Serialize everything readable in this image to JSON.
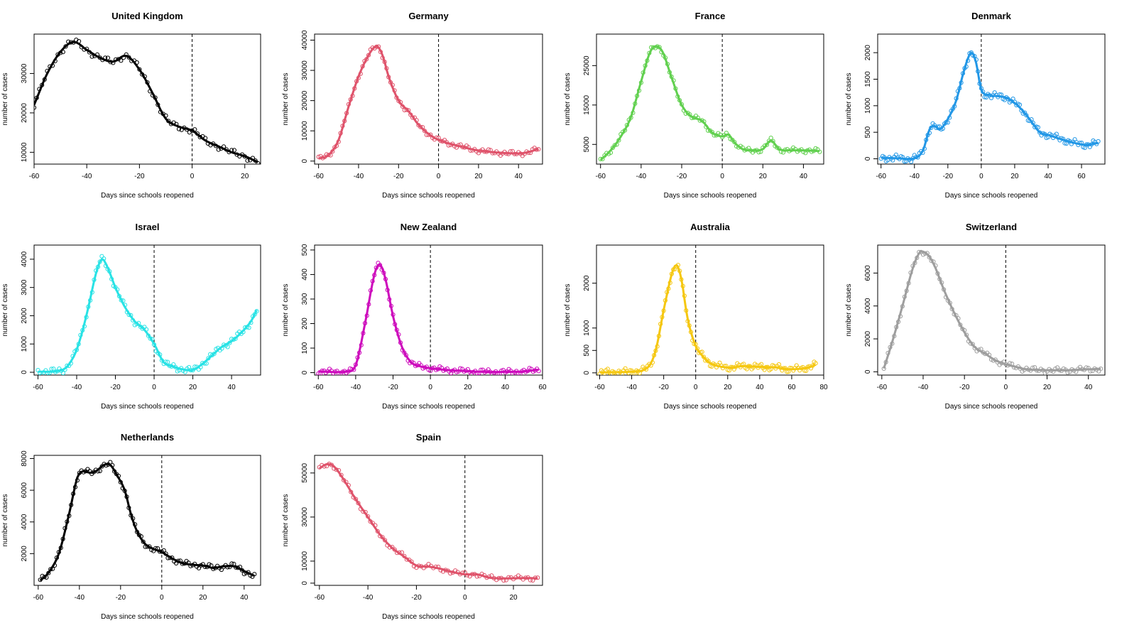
{
  "figure": {
    "background": "#ffffff"
  },
  "chart_data": [
    {
      "type": "scatter+line",
      "title": "United Kingdom",
      "color": "#000000",
      "xlabel": "Days since schools reopened",
      "ylabel": "number of cases",
      "xlim": [
        -60,
        26
      ],
      "ylim": [
        7000,
        40000
      ],
      "xticks": [
        -60,
        -40,
        -20,
        0,
        20
      ],
      "yticks": [
        10000,
        20000,
        30000
      ],
      "reopen_day": 0,
      "curve": [
        [
          -60,
          22000
        ],
        [
          -55,
          30000
        ],
        [
          -50,
          35500
        ],
        [
          -45,
          38000
        ],
        [
          -40,
          36000
        ],
        [
          -35,
          34000
        ],
        [
          -30,
          33000
        ],
        [
          -25,
          34500
        ],
        [
          -20,
          31000
        ],
        [
          -15,
          25000
        ],
        [
          -10,
          18500
        ],
        [
          -5,
          16500
        ],
        [
          0,
          15500
        ],
        [
          5,
          13000
        ],
        [
          10,
          11500
        ],
        [
          15,
          10000
        ],
        [
          20,
          9000
        ],
        [
          25,
          7500
        ]
      ],
      "noise_amp": 900
    },
    {
      "type": "scatter+line",
      "title": "Germany",
      "color": "#DF536B",
      "xlabel": "Days since schools reopened",
      "ylabel": "number of cases",
      "xlim": [
        -62,
        52
      ],
      "ylim": [
        -1000,
        42000
      ],
      "xticks": [
        -60,
        -40,
        -20,
        0,
        20,
        40
      ],
      "yticks": [
        0,
        10000,
        20000,
        30000,
        40000
      ],
      "reopen_day": 0,
      "curve": [
        [
          -60,
          800
        ],
        [
          -55,
          2000
        ],
        [
          -50,
          7000
        ],
        [
          -45,
          18000
        ],
        [
          -40,
          28000
        ],
        [
          -35,
          35000
        ],
        [
          -31,
          38000
        ],
        [
          -28,
          35000
        ],
        [
          -25,
          28000
        ],
        [
          -20,
          20000
        ],
        [
          -15,
          16500
        ],
        [
          -10,
          12000
        ],
        [
          -5,
          9000
        ],
        [
          0,
          7000
        ],
        [
          10,
          5000
        ],
        [
          20,
          3500
        ],
        [
          30,
          2800
        ],
        [
          40,
          2500
        ],
        [
          45,
          3000
        ],
        [
          50,
          4000
        ]
      ],
      "noise_amp": 900
    },
    {
      "type": "scatter+line",
      "title": "France",
      "color": "#61D04F",
      "xlabel": "Days since schools reopened",
      "ylabel": "number of cases",
      "xlim": [
        -62,
        50
      ],
      "ylim": [
        0,
        33000
      ],
      "xticks": [
        -60,
        -40,
        -20,
        0,
        20,
        40
      ],
      "yticks": [
        5000,
        15000,
        25000
      ],
      "reopen_day": 0,
      "curve": [
        [
          -60,
          1000
        ],
        [
          -55,
          3500
        ],
        [
          -50,
          7000
        ],
        [
          -45,
          12000
        ],
        [
          -40,
          21000
        ],
        [
          -35,
          29000
        ],
        [
          -30,
          29000
        ],
        [
          -25,
          22000
        ],
        [
          -20,
          15000
        ],
        [
          -15,
          12000
        ],
        [
          -10,
          11000
        ],
        [
          -5,
          8000
        ],
        [
          0,
          7000
        ],
        [
          3,
          7500
        ],
        [
          6,
          5500
        ],
        [
          10,
          3800
        ],
        [
          15,
          3500
        ],
        [
          20,
          3800
        ],
        [
          24,
          6000
        ],
        [
          28,
          3800
        ],
        [
          35,
          3500
        ],
        [
          40,
          3500
        ],
        [
          48,
          3300
        ]
      ],
      "noise_amp": 700
    },
    {
      "type": "scatter+line",
      "title": "Denmark",
      "color": "#2297E6",
      "xlabel": "Days since schools reopened",
      "ylabel": "number of cases",
      "xlim": [
        -62,
        74
      ],
      "ylim": [
        -100,
        2350
      ],
      "xticks": [
        -60,
        -40,
        -20,
        0,
        20,
        40,
        60
      ],
      "yticks": [
        0,
        500,
        1000,
        1500,
        2000
      ],
      "reopen_day": 0,
      "curve": [
        [
          -60,
          20
        ],
        [
          -50,
          10
        ],
        [
          -40,
          10
        ],
        [
          -35,
          150
        ],
        [
          -31,
          550
        ],
        [
          -28,
          620
        ],
        [
          -25,
          550
        ],
        [
          -20,
          750
        ],
        [
          -15,
          1100
        ],
        [
          -10,
          1700
        ],
        [
          -6,
          2000
        ],
        [
          -3,
          1800
        ],
        [
          0,
          1300
        ],
        [
          5,
          1200
        ],
        [
          10,
          1180
        ],
        [
          15,
          1150
        ],
        [
          20,
          1050
        ],
        [
          25,
          900
        ],
        [
          30,
          700
        ],
        [
          35,
          500
        ],
        [
          40,
          450
        ],
        [
          50,
          350
        ],
        [
          60,
          270
        ],
        [
          65,
          270
        ],
        [
          70,
          300
        ]
      ],
      "noise_amp": 70
    },
    {
      "type": "scatter+line",
      "title": "Israel",
      "color": "#28E2E5",
      "xlabel": "Days since schools reopened",
      "ylabel": "number of cases",
      "xlim": [
        -62,
        55
      ],
      "ylim": [
        -100,
        4500
      ],
      "xticks": [
        -60,
        -40,
        -20,
        0,
        20,
        40
      ],
      "yticks": [
        0,
        1000,
        2000,
        3000,
        4000
      ],
      "reopen_day": 0,
      "curve": [
        [
          -60,
          20
        ],
        [
          -50,
          40
        ],
        [
          -45,
          200
        ],
        [
          -40,
          800
        ],
        [
          -35,
          2000
        ],
        [
          -30,
          3500
        ],
        [
          -27,
          4000
        ],
        [
          -24,
          3700
        ],
        [
          -20,
          3000
        ],
        [
          -15,
          2300
        ],
        [
          -10,
          1800
        ],
        [
          -5,
          1500
        ],
        [
          0,
          1000
        ],
        [
          5,
          350
        ],
        [
          10,
          200
        ],
        [
          15,
          100
        ],
        [
          20,
          80
        ],
        [
          25,
          300
        ],
        [
          30,
          600
        ],
        [
          35,
          900
        ],
        [
          40,
          1100
        ],
        [
          45,
          1400
        ],
        [
          50,
          1800
        ],
        [
          53,
          2200
        ]
      ],
      "noise_amp": 130
    },
    {
      "type": "scatter+line",
      "title": "New Zealand",
      "color": "#CD0BBC",
      "xlabel": "Days since schools reopened",
      "ylabel": "number of cases",
      "xlim": [
        -62,
        60
      ],
      "ylim": [
        -10,
        520
      ],
      "xticks": [
        -60,
        -40,
        -20,
        0,
        20,
        40,
        60
      ],
      "yticks": [
        0,
        100,
        200,
        300,
        400,
        500
      ],
      "reopen_day": 0,
      "curve": [
        [
          -60,
          5
        ],
        [
          -45,
          5
        ],
        [
          -40,
          30
        ],
        [
          -35,
          200
        ],
        [
          -30,
          400
        ],
        [
          -27,
          440
        ],
        [
          -24,
          380
        ],
        [
          -20,
          230
        ],
        [
          -15,
          100
        ],
        [
          -10,
          40
        ],
        [
          -5,
          25
        ],
        [
          0,
          18
        ],
        [
          10,
          10
        ],
        [
          20,
          6
        ],
        [
          30,
          3
        ],
        [
          40,
          3
        ],
        [
          50,
          5
        ],
        [
          58,
          12
        ]
      ],
      "noise_amp": 12
    },
    {
      "type": "scatter+line",
      "title": "Australia",
      "color": "#F5C710",
      "xlabel": "Days since schools reopened",
      "ylabel": "number of cases",
      "xlim": [
        -62,
        80
      ],
      "ylim": [
        -50,
        2850
      ],
      "xticks": [
        -60,
        -40,
        -20,
        0,
        20,
        40,
        60,
        80
      ],
      "yticks": [
        0,
        500,
        1000,
        2000
      ],
      "reopen_day": 0,
      "curve": [
        [
          -60,
          10
        ],
        [
          -40,
          30
        ],
        [
          -30,
          120
        ],
        [
          -25,
          500
        ],
        [
          -20,
          1400
        ],
        [
          -15,
          2200
        ],
        [
          -12,
          2400
        ],
        [
          -9,
          2100
        ],
        [
          -5,
          1200
        ],
        [
          0,
          600
        ],
        [
          5,
          350
        ],
        [
          10,
          200
        ],
        [
          20,
          120
        ],
        [
          30,
          150
        ],
        [
          40,
          130
        ],
        [
          50,
          120
        ],
        [
          60,
          80
        ],
        [
          70,
          120
        ],
        [
          75,
          180
        ]
      ],
      "noise_amp": 80
    },
    {
      "type": "scatter+line",
      "title": "Switzerland",
      "color": "#9E9E9E",
      "xlabel": "Days since schools reopened",
      "ylabel": "number of cases",
      "xlim": [
        -62,
        48
      ],
      "ylim": [
        -200,
        7700
      ],
      "xticks": [
        -60,
        -40,
        -20,
        0,
        20,
        40
      ],
      "yticks": [
        0,
        2000,
        4000,
        6000
      ],
      "reopen_day": 0,
      "curve": [
        [
          -59,
          200
        ],
        [
          -55,
          1800
        ],
        [
          -50,
          4000
        ],
        [
          -45,
          6300
        ],
        [
          -42,
          7200
        ],
        [
          -40,
          7300
        ],
        [
          -37,
          7000
        ],
        [
          -34,
          6300
        ],
        [
          -30,
          5000
        ],
        [
          -25,
          3600
        ],
        [
          -20,
          2400
        ],
        [
          -15,
          1500
        ],
        [
          -10,
          1100
        ],
        [
          -5,
          700
        ],
        [
          0,
          450
        ],
        [
          5,
          300
        ],
        [
          10,
          150
        ],
        [
          20,
          100
        ],
        [
          30,
          100
        ],
        [
          40,
          150
        ],
        [
          46,
          180
        ]
      ],
      "noise_amp": 180
    },
    {
      "type": "scatter+line",
      "title": "Netherlands",
      "color": "#000000",
      "xlabel": "Days since schools reopened",
      "ylabel": "number of cases",
      "xlim": [
        -62,
        48
      ],
      "ylim": [
        0,
        8200
      ],
      "xticks": [
        -60,
        -40,
        -20,
        0,
        20,
        40
      ],
      "yticks": [
        2000,
        4000,
        6000,
        8000
      ],
      "reopen_day": 0,
      "curve": [
        [
          -59,
          300
        ],
        [
          -55,
          800
        ],
        [
          -50,
          2000
        ],
        [
          -45,
          4500
        ],
        [
          -41,
          6800
        ],
        [
          -38,
          7200
        ],
        [
          -35,
          7100
        ],
        [
          -32,
          7200
        ],
        [
          -28,
          7600
        ],
        [
          -25,
          7600
        ],
        [
          -22,
          7000
        ],
        [
          -18,
          6000
        ],
        [
          -15,
          4500
        ],
        [
          -12,
          3400
        ],
        [
          -8,
          2600
        ],
        [
          -4,
          2300
        ],
        [
          0,
          2100
        ],
        [
          5,
          1700
        ],
        [
          10,
          1400
        ],
        [
          15,
          1300
        ],
        [
          20,
          1250
        ],
        [
          25,
          1100
        ],
        [
          30,
          1200
        ],
        [
          35,
          1200
        ],
        [
          40,
          900
        ],
        [
          45,
          600
        ]
      ],
      "noise_amp": 200
    },
    {
      "type": "scatter+line",
      "title": "Spain",
      "color": "#DF536B",
      "xlabel": "Days since schools reopened",
      "ylabel": "number of cases",
      "xlim": [
        -62,
        32
      ],
      "ylim": [
        -1000,
        58000
      ],
      "xticks": [
        -60,
        -40,
        -20,
        0,
        20
      ],
      "yticks": [
        0,
        10000,
        30000,
        50000
      ],
      "reopen_day": 0,
      "curve": [
        [
          -60,
          52000
        ],
        [
          -57,
          54000
        ],
        [
          -54,
          53000
        ],
        [
          -50,
          47000
        ],
        [
          -45,
          38000
        ],
        [
          -40,
          30000
        ],
        [
          -35,
          22000
        ],
        [
          -30,
          16000
        ],
        [
          -25,
          12000
        ],
        [
          -20,
          8000
        ],
        [
          -15,
          7500
        ],
        [
          -10,
          6500
        ],
        [
          -5,
          5000
        ],
        [
          0,
          4000
        ],
        [
          5,
          4000
        ],
        [
          10,
          2500
        ],
        [
          15,
          2200
        ],
        [
          20,
          2200
        ],
        [
          25,
          2300
        ],
        [
          30,
          2200
        ]
      ],
      "noise_amp": 1200
    }
  ]
}
